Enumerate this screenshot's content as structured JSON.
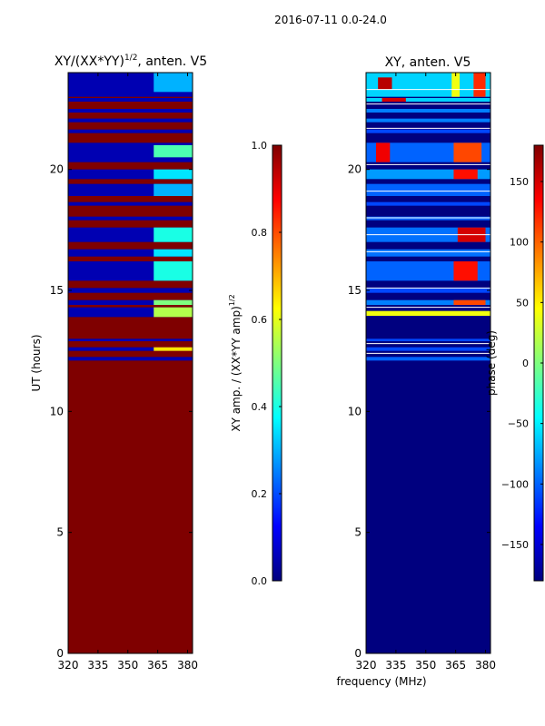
{
  "figure": {
    "suptitle": "2016-07-11 0.0-24.0",
    "shared_xlabel": "frequency (MHz)"
  },
  "colormap": {
    "name": "jet",
    "stops": [
      "#00007f",
      "#0000ff",
      "#007fff",
      "#00ffff",
      "#7fff7f",
      "#ffff00",
      "#ff7f00",
      "#ff0000",
      "#7f0000"
    ]
  },
  "chart_data": [
    {
      "type": "heatmap",
      "panel": "left",
      "title_main": "XY/(XX*YY)",
      "title_sup": "1/2",
      "title_tail": ", anten. V5",
      "xlabel": "",
      "ylabel": "UT (hours)",
      "xlim": [
        320,
        382.5
      ],
      "ylim": [
        0,
        24
      ],
      "xticks": [
        320,
        335,
        350,
        365,
        380
      ],
      "yticks": [
        0,
        5,
        10,
        15,
        20
      ],
      "fill_value": 1.0,
      "bands": [
        {
          "y0": 23.0,
          "y1": 24.0,
          "value": 0.05
        },
        {
          "y0": 22.8,
          "y1": 22.95,
          "value": 0.05
        },
        {
          "y0": 22.35,
          "y1": 22.5,
          "value": 0.05
        },
        {
          "y0": 21.95,
          "y1": 22.1,
          "value": 0.05
        },
        {
          "y0": 21.5,
          "y1": 21.65,
          "value": 0.05
        },
        {
          "y0": 20.3,
          "y1": 21.1,
          "value": 0.05
        },
        {
          "y0": 19.6,
          "y1": 20.0,
          "value": 0.05
        },
        {
          "y0": 18.9,
          "y1": 19.4,
          "value": 0.05
        },
        {
          "y0": 18.5,
          "y1": 18.65,
          "value": 0.05
        },
        {
          "y0": 17.9,
          "y1": 18.05,
          "value": 0.05
        },
        {
          "y0": 17.0,
          "y1": 17.6,
          "value": 0.05
        },
        {
          "y0": 16.4,
          "y1": 16.7,
          "value": 0.05
        },
        {
          "y0": 15.4,
          "y1": 16.2,
          "value": 0.05
        },
        {
          "y0": 14.9,
          "y1": 15.1,
          "value": 0.05
        },
        {
          "y0": 14.4,
          "y1": 14.6,
          "value": 0.05
        },
        {
          "y0": 13.9,
          "y1": 14.3,
          "value": 0.05
        },
        {
          "y0": 12.9,
          "y1": 13.0,
          "value": 0.05
        },
        {
          "y0": 12.5,
          "y1": 12.65,
          "value": 0.05
        },
        {
          "y0": 12.1,
          "y1": 12.25,
          "value": 0.05
        }
      ],
      "patches": [
        {
          "y0": 23.2,
          "y1": 24.0,
          "x0": 363,
          "x1": 382.5,
          "value": 0.3
        },
        {
          "y0": 20.5,
          "y1": 21.0,
          "x0": 363,
          "x1": 382.5,
          "value": 0.45
        },
        {
          "y0": 19.6,
          "y1": 20.0,
          "x0": 363,
          "x1": 382.5,
          "value": 0.35
        },
        {
          "y0": 18.9,
          "y1": 19.4,
          "x0": 363,
          "x1": 382.5,
          "value": 0.3
        },
        {
          "y0": 17.0,
          "y1": 17.6,
          "x0": 363,
          "x1": 382.5,
          "value": 0.4
        },
        {
          "y0": 16.4,
          "y1": 16.7,
          "x0": 363,
          "x1": 382.5,
          "value": 0.35
        },
        {
          "y0": 15.4,
          "y1": 16.2,
          "x0": 363,
          "x1": 382.5,
          "value": 0.4
        },
        {
          "y0": 14.4,
          "y1": 14.6,
          "x0": 363,
          "x1": 382.5,
          "value": 0.5
        },
        {
          "y0": 13.9,
          "y1": 14.3,
          "x0": 363,
          "x1": 382.5,
          "value": 0.55
        },
        {
          "y0": 12.5,
          "y1": 12.65,
          "x0": 363,
          "x1": 382.5,
          "value": 0.65
        }
      ],
      "colorbar": {
        "label_main": "XY amp. / (XX*YY amp)",
        "label_sup": "1/2",
        "vmin": 0.0,
        "vmax": 1.0,
        "ticks": [
          0.0,
          0.2,
          0.4,
          0.6,
          0.8,
          1.0
        ],
        "ticklabels": [
          "0.0",
          "0.2",
          "0.4",
          "0.6",
          "0.8",
          "1.0"
        ]
      }
    },
    {
      "type": "heatmap",
      "panel": "right",
      "title_main": "XY, anten. V5",
      "title_sup": "",
      "title_tail": "",
      "xlabel": "frequency (MHz)",
      "ylabel": "",
      "xlim": [
        320,
        382.5
      ],
      "ylim": [
        0,
        24
      ],
      "xticks": [
        320,
        335,
        350,
        365,
        380
      ],
      "yticks": [
        0,
        5,
        10,
        15,
        20
      ],
      "fill_value": -180,
      "bands": [
        {
          "y0": 23.0,
          "y1": 24.0,
          "value": -60
        },
        {
          "y0": 22.8,
          "y1": 22.95,
          "value": -60
        },
        {
          "y0": 22.35,
          "y1": 22.5,
          "value": -90
        },
        {
          "y0": 21.95,
          "y1": 22.1,
          "value": -90
        },
        {
          "y0": 21.5,
          "y1": 21.65,
          "value": -110
        },
        {
          "y0": 20.3,
          "y1": 21.1,
          "value": -100
        },
        {
          "y0": 19.6,
          "y1": 20.0,
          "value": -80
        },
        {
          "y0": 18.9,
          "y1": 19.4,
          "value": -100
        },
        {
          "y0": 18.5,
          "y1": 18.65,
          "value": -110
        },
        {
          "y0": 17.9,
          "y1": 18.05,
          "value": -100
        },
        {
          "y0": 17.0,
          "y1": 17.6,
          "value": -95
        },
        {
          "y0": 16.4,
          "y1": 16.7,
          "value": -95
        },
        {
          "y0": 15.4,
          "y1": 16.2,
          "value": -100
        },
        {
          "y0": 14.9,
          "y1": 15.1,
          "value": -110
        },
        {
          "y0": 14.4,
          "y1": 14.6,
          "value": -90
        },
        {
          "y0": 13.95,
          "y1": 14.15,
          "value": 40
        },
        {
          "y0": 12.9,
          "y1": 13.0,
          "value": -110
        },
        {
          "y0": 12.5,
          "y1": 12.65,
          "value": -110
        },
        {
          "y0": 12.1,
          "y1": 12.25,
          "value": -100
        }
      ],
      "patches": [
        {
          "y0": 23.0,
          "y1": 24.0,
          "x0": 363,
          "x1": 367,
          "value": 40
        },
        {
          "y0": 23.0,
          "y1": 24.0,
          "x0": 374,
          "x1": 380,
          "value": 120
        },
        {
          "y0": 20.3,
          "y1": 21.1,
          "x0": 364,
          "x1": 378,
          "value": 110
        },
        {
          "y0": 19.6,
          "y1": 20.0,
          "x0": 364,
          "x1": 376,
          "value": 130
        },
        {
          "y0": 17.0,
          "y1": 17.6,
          "x0": 366,
          "x1": 380,
          "value": 150
        },
        {
          "y0": 15.4,
          "y1": 16.2,
          "x0": 364,
          "x1": 376,
          "value": 130
        },
        {
          "y0": 14.4,
          "y1": 14.6,
          "x0": 364,
          "x1": 380,
          "value": 110
        },
        {
          "y0": 20.3,
          "y1": 21.1,
          "x0": 325,
          "x1": 332,
          "value": 140
        },
        {
          "y0": 22.8,
          "y1": 22.95,
          "x0": 328,
          "x1": 340,
          "value": 150
        },
        {
          "y0": 23.3,
          "y1": 23.8,
          "x0": 326,
          "x1": 333,
          "value": 160
        }
      ],
      "white_lines": [
        23.3,
        22.7,
        21.7,
        20.2,
        19.1,
        18.0,
        17.3,
        16.6,
        15.1,
        14.3,
        12.8,
        12.4
      ],
      "colorbar": {
        "label_main": "phase (deg)",
        "label_sup": "",
        "vmin": -180,
        "vmax": 180,
        "ticks": [
          -150,
          -100,
          -50,
          0,
          50,
          100,
          150
        ],
        "ticklabels": [
          "−150",
          "−100",
          "−50",
          "0",
          "50",
          "100",
          "150"
        ]
      }
    }
  ]
}
